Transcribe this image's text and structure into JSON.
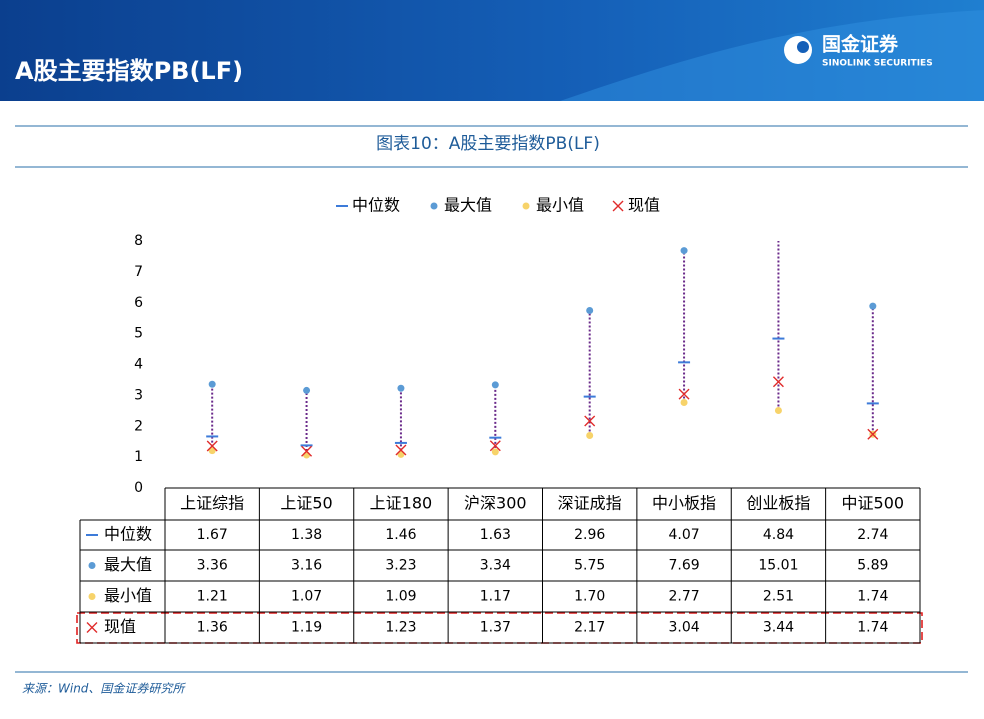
{
  "header": {
    "title": "A股主要指数PB(LF)",
    "logo_cn": "国金证券",
    "logo_en": "SINOLINK SECURITIES"
  },
  "chart_data": {
    "type": "range",
    "title": "图表10：A股主要指数PB(LF)",
    "categories": [
      "上证综指",
      "上证50",
      "上证180",
      "沪深300",
      "深证成指",
      "中小板指",
      "创业板指",
      "中证500"
    ],
    "series": [
      {
        "name": "中位数",
        "color": "#3d7bd9",
        "values": [
          1.67,
          1.38,
          1.46,
          1.63,
          2.96,
          4.07,
          4.84,
          2.74
        ],
        "value_labels": [
          "1.67",
          "1.38",
          "1.46",
          "1.63",
          "2.96",
          "4.07",
          "4.84",
          "2.74"
        ]
      },
      {
        "name": "最大值",
        "color": "#5b9bd5",
        "values": [
          3.36,
          3.16,
          3.23,
          3.34,
          5.75,
          7.69,
          15.01,
          5.89
        ],
        "value_labels": [
          "3.36",
          "3.16",
          "3.23",
          "3.34",
          "5.75",
          "7.69",
          "15.01",
          "5.89"
        ]
      },
      {
        "name": "最小值",
        "color": "#f7d36a",
        "values": [
          1.21,
          1.07,
          1.09,
          1.17,
          1.7,
          2.77,
          2.51,
          1.74
        ],
        "value_labels": [
          "1.21",
          "1.07",
          "1.09",
          "1.17",
          "1.70",
          "2.77",
          "2.51",
          "1.74"
        ]
      },
      {
        "name": "现值",
        "color": "#e02b2b",
        "values": [
          1.36,
          1.19,
          1.23,
          1.37,
          2.17,
          3.04,
          3.44,
          1.74
        ],
        "value_labels": [
          "1.36",
          "1.19",
          "1.23",
          "1.37",
          "2.17",
          "3.04",
          "3.44",
          "1.74"
        ]
      }
    ],
    "range_color": "#6a2a8a",
    "ylim": [
      0,
      8
    ],
    "yticks": [
      0,
      1,
      2,
      3,
      4,
      5,
      6,
      7,
      8
    ],
    "grid": false
  },
  "source": "来源：Wind、国金证券研究所"
}
